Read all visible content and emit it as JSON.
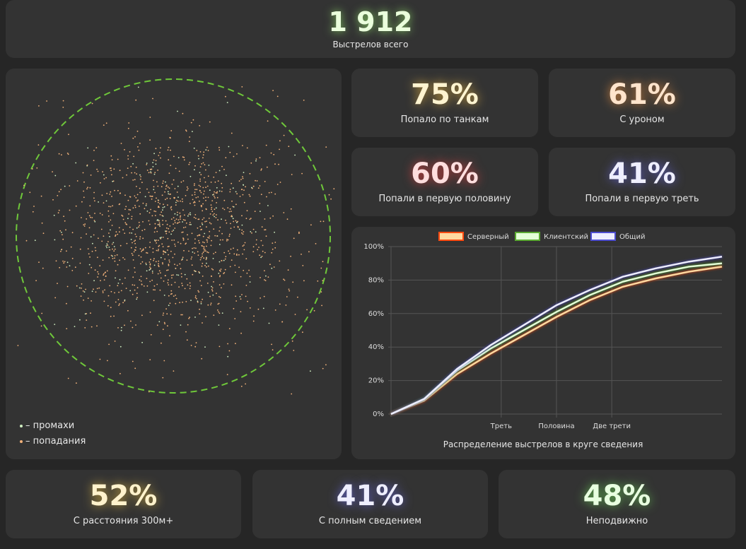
{
  "total": {
    "value": "1 912",
    "label": "Выстрелов всего",
    "color": "#eaffdc"
  },
  "stats": [
    {
      "value": "75%",
      "label": "Попало по танкам",
      "color": "#fff4d0"
    },
    {
      "value": "61%",
      "label": "С уроном",
      "color": "#ffe4cc"
    },
    {
      "value": "60%",
      "label": "Попали в первую половину",
      "color": "#ffdede"
    },
    {
      "value": "41%",
      "label": "Попали в первую треть",
      "color": "#e8e8ff"
    }
  ],
  "bottom": [
    {
      "value": "52%",
      "label": "С расстояния 300м+",
      "color": "#fff2cc"
    },
    {
      "value": "41%",
      "label": "С полным сведением",
      "color": "#e8e8ff"
    },
    {
      "value": "48%",
      "label": "Неподвижно",
      "color": "#e8ffe0"
    }
  ],
  "scatter": {
    "legend": [
      {
        "label": "– промахи",
        "color": "#cfeec0"
      },
      {
        "label": "– попадания",
        "color": "#f2b27a"
      }
    ],
    "circle_color": "#6fc83a"
  },
  "chart_data": {
    "type": "line",
    "title": "Распределение выстрелов в круге сведения",
    "x": [
      0,
      0.1,
      0.2,
      0.3,
      0.4,
      0.5,
      0.6,
      0.7,
      0.8,
      0.9,
      1.0
    ],
    "xticks": [
      {
        "value": 0.333,
        "label": "Треть"
      },
      {
        "value": 0.5,
        "label": "Половина"
      },
      {
        "value": 0.667,
        "label": "Две трети"
      }
    ],
    "yticks": [
      "0%",
      "20%",
      "40%",
      "60%",
      "80%",
      "100%"
    ],
    "ylim": [
      0,
      100
    ],
    "series": [
      {
        "name": "Серверный",
        "values": [
          0,
          8,
          24,
          36,
          47,
          58,
          68,
          76,
          81,
          85,
          88
        ],
        "color": "#ffd9a0",
        "border": "#ff4a10"
      },
      {
        "name": "Клиентский",
        "values": [
          0,
          9,
          26,
          39,
          50,
          61,
          71,
          79,
          84,
          88,
          90
        ],
        "color": "#e4ffd8",
        "border": "#5aa832"
      },
      {
        "name": "Общий",
        "values": [
          0,
          9,
          27,
          41,
          53,
          65,
          74,
          82,
          87,
          91,
          94
        ],
        "color": "#eeeeff",
        "border": "#4d4dd0"
      }
    ]
  }
}
